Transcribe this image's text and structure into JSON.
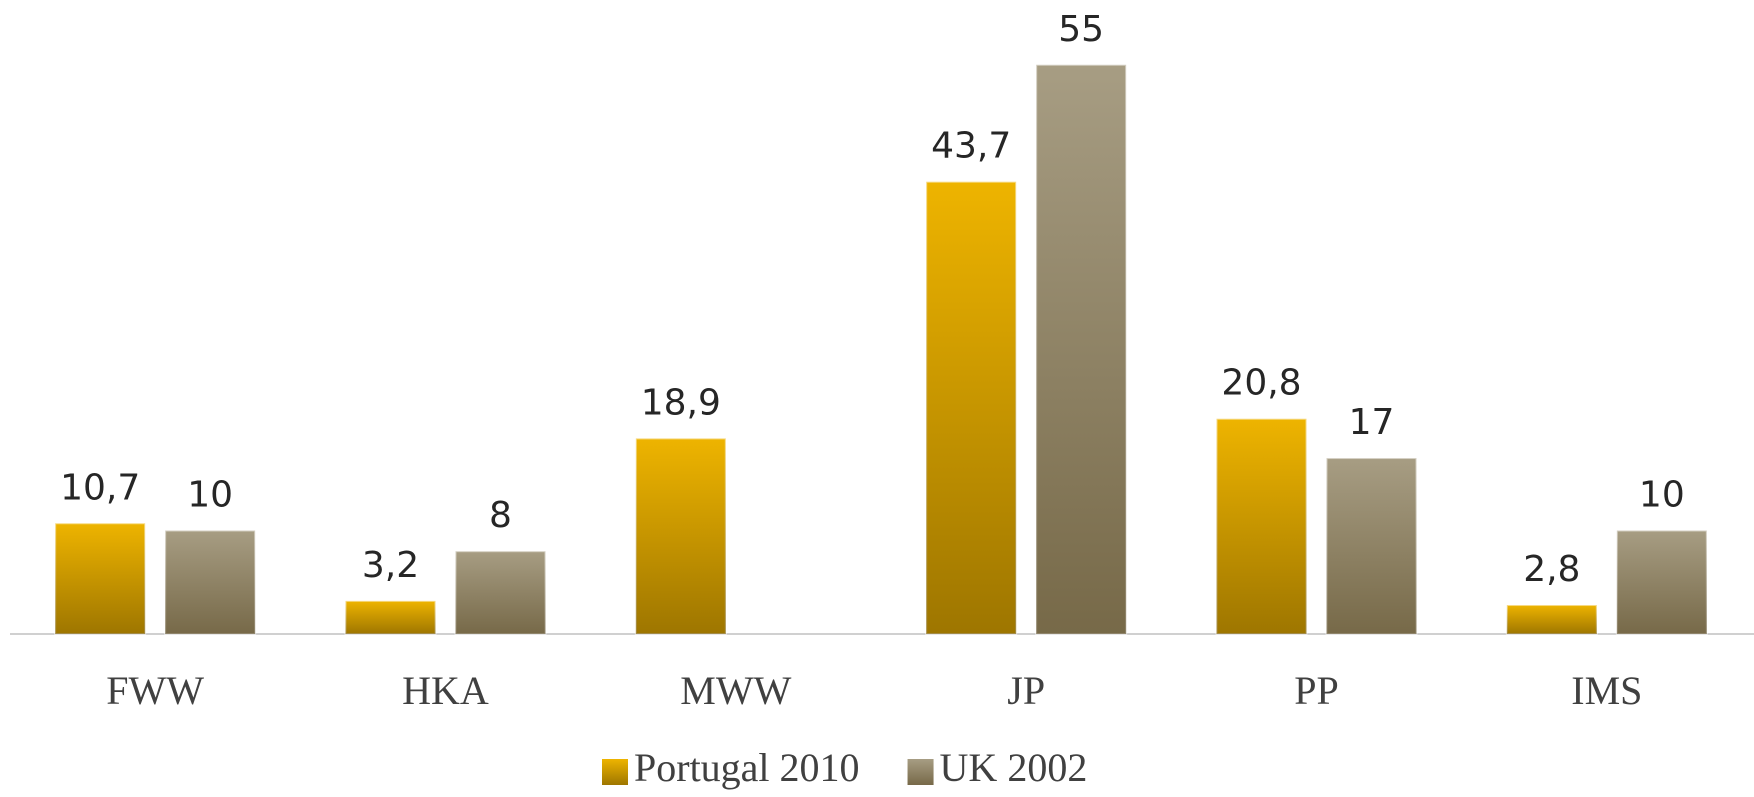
{
  "chart_data": {
    "type": "bar",
    "categories": [
      "FWW",
      "HKA",
      "MWW",
      "JP",
      "PP",
      "IMS"
    ],
    "series": [
      {
        "name": "Portugal 2010",
        "color": "#eeb400",
        "values": [
          10.7,
          3.2,
          18.9,
          43.7,
          20.8,
          2.8
        ],
        "value_labels": [
          "10,7",
          "3,2",
          "18,9",
          "43,7",
          "20,8",
          "2,8"
        ]
      },
      {
        "name": "UK 2002",
        "color": "#a79d83",
        "values": [
          10,
          8,
          null,
          55,
          17,
          10
        ],
        "value_labels": [
          "10",
          "8",
          null,
          "55",
          "17",
          "10"
        ]
      }
    ],
    "ylim": [
      0,
      60
    ],
    "legend": "bottom"
  }
}
